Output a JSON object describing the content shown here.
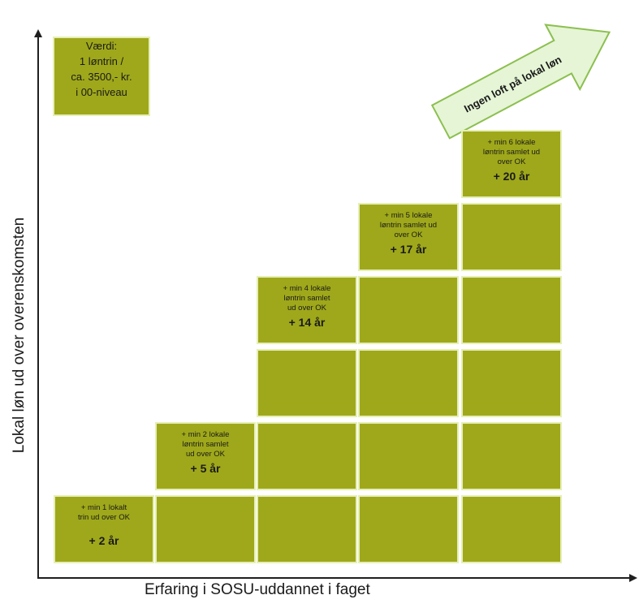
{
  "axes": {
    "y_label": "Lokal løn ud over overenskomsten",
    "x_label": "Erfaring i SOSU-uddannet i faget"
  },
  "legend": {
    "lines": [
      "Værdi:",
      "1 løntrin /",
      "ca. 3500,- kr.",
      "i 00-niveau"
    ]
  },
  "arrow_label": "Ingen loft på lokal løn",
  "steps": [
    {
      "text": "+ min 1 lokalt\ntrin ud over OK",
      "years": "+ 2 år"
    },
    {
      "text": "+ min 2 lokale\nløntrin samlet\nud over OK",
      "years": "+ 5 år"
    },
    {
      "text": "+ min 4 lokale\nløntrin samlet\nud over OK",
      "years": "+ 14 år"
    },
    {
      "text": "+ min 5 lokale\nløntrin samlet ud\nover OK",
      "years": "+ 17 år"
    },
    {
      "text": "+ min 6 lokale\nløntrin samlet ud\nover OK",
      "years": "+ 20 år"
    }
  ],
  "colors": {
    "block": "#9fa81a",
    "block_border": "#e6efb5",
    "arrow_fill": "#e5f5d6",
    "arrow_stroke": "#8cbf4f"
  }
}
